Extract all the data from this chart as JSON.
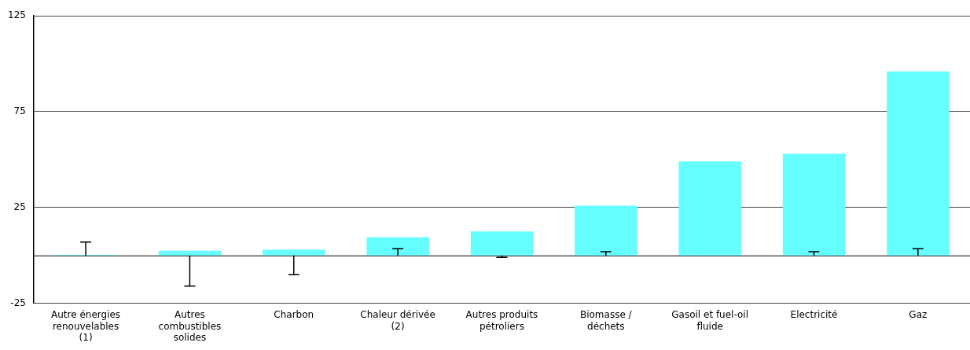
{
  "chart_data": {
    "type": "bar",
    "categories": [
      "Autre énergies renouvelables (1)",
      "Autres combustibles solides",
      "Charbon",
      "Chaleur dérivée (2)",
      "Autres produits pétroliers",
      "Biomasse / déchets",
      "Gasoil et fuel-oil fluide",
      "Electricité",
      "Gaz"
    ],
    "series": [
      {
        "color": "#66ffff",
        "values": [
          0.3,
          2.5,
          3,
          9.5,
          12.5,
          26,
          49,
          53,
          96
        ],
        "errors": [
          [
            0,
            7
          ],
          [
            -16,
            0
          ],
          [
            -10,
            0
          ],
          [
            0,
            3.5
          ],
          [
            -1,
            0
          ],
          [
            0,
            2
          ],
          null,
          [
            0,
            2
          ],
          [
            0,
            3.5
          ]
        ]
      }
    ],
    "ylim": [
      -25,
      125
    ],
    "yticks": [
      -25,
      25,
      75,
      125
    ],
    "grid": "y",
    "legend": false
  }
}
